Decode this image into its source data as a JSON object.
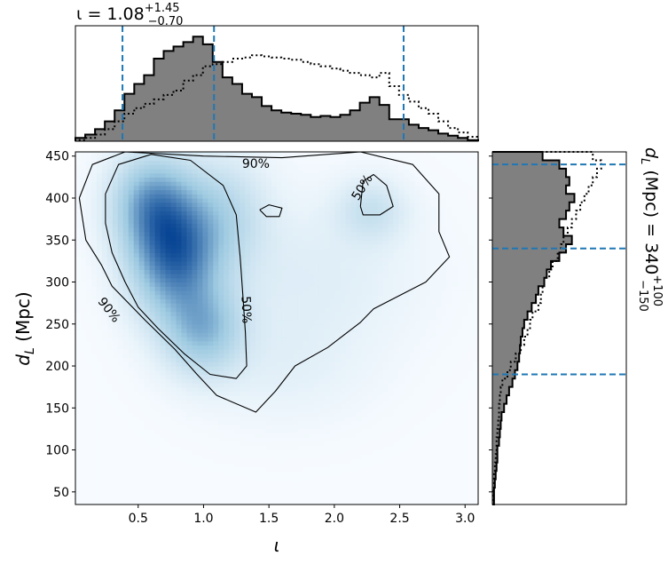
{
  "chart_data": [
    {
      "panel": "top-marginal",
      "type": "histogram",
      "title": "ι = 1.08",
      "title_sup": "+1.45",
      "title_sub": "−0.70",
      "xlim": [
        0.02,
        3.1
      ],
      "bin_edges": [
        0.02,
        0.095,
        0.17,
        0.245,
        0.32,
        0.395,
        0.47,
        0.545,
        0.62,
        0.695,
        0.77,
        0.845,
        0.92,
        0.995,
        1.07,
        1.145,
        1.22,
        1.295,
        1.37,
        1.445,
        1.52,
        1.595,
        1.67,
        1.745,
        1.82,
        1.895,
        1.97,
        2.045,
        2.12,
        2.195,
        2.27,
        2.345,
        2.42,
        2.495,
        2.57,
        2.645,
        2.72,
        2.795,
        2.87,
        2.945,
        3.02,
        3.1
      ],
      "filled_hist": [
        3,
        6,
        11,
        18,
        28,
        43,
        52,
        60,
        75,
        82,
        86,
        90,
        95,
        88,
        72,
        58,
        52,
        43,
        40,
        32,
        28,
        26,
        25,
        24,
        22,
        23,
        22,
        24,
        28,
        35,
        40,
        33,
        20,
        20,
        15,
        12,
        10,
        7,
        5,
        3,
        1
      ],
      "dotted_hist": [
        1,
        3,
        6,
        11,
        18,
        25,
        30,
        34,
        38,
        42,
        46,
        55,
        60,
        68,
        70,
        72,
        75,
        76,
        78,
        77,
        76,
        75,
        74,
        72,
        70,
        68,
        66,
        64,
        62,
        60,
        58,
        62,
        50,
        42,
        36,
        30,
        25,
        18,
        12,
        8,
        4
      ],
      "quantile_lines": [
        0.38,
        1.08,
        2.53
      ],
      "ylim": [
        0,
        100
      ]
    },
    {
      "panel": "joint",
      "type": "heatmap",
      "xlabel": "ι",
      "ylabel": "d",
      "ylabel_sub": "L",
      "ylabel_unit": " (Mpc)",
      "xlim": [
        0.02,
        3.1
      ],
      "ylim": [
        35,
        455
      ],
      "xticks": [
        0.5,
        1.0,
        1.5,
        2.0,
        2.5,
        3.0
      ],
      "xtick_labels": [
        "0.5",
        "1.0",
        "1.5",
        "2.0",
        "2.5",
        "3.0"
      ],
      "yticks": [
        50,
        100,
        150,
        200,
        250,
        300,
        350,
        400,
        450
      ],
      "ytick_labels": [
        "50",
        "100",
        "150",
        "200",
        "250",
        "300",
        "350",
        "400",
        "450"
      ],
      "density_blobs": [
        {
          "x": 0.78,
          "y": 335,
          "sx": 0.22,
          "sy": 48,
          "w": 1.0
        },
        {
          "x": 0.6,
          "y": 395,
          "sx": 0.2,
          "sy": 38,
          "w": 0.62
        },
        {
          "x": 1.0,
          "y": 245,
          "sx": 0.2,
          "sy": 35,
          "w": 0.55
        },
        {
          "x": 1.15,
          "y": 380,
          "sx": 0.22,
          "sy": 45,
          "w": 0.3
        },
        {
          "x": 2.28,
          "y": 385,
          "sx": 0.18,
          "sy": 25,
          "w": 0.22
        },
        {
          "x": 1.8,
          "y": 310,
          "sx": 0.55,
          "sy": 60,
          "w": 0.1
        },
        {
          "x": 1.6,
          "y": 200,
          "sx": 0.45,
          "sy": 45,
          "w": 0.07
        }
      ],
      "contours": [
        {
          "label": "90%",
          "points": [
            [
              0.05,
              400
            ],
            [
              0.15,
              440
            ],
            [
              0.4,
              455
            ],
            [
              1.0,
              450
            ],
            [
              1.6,
              448
            ],
            [
              2.2,
              455
            ],
            [
              2.6,
              440
            ],
            [
              2.8,
              405
            ],
            [
              2.8,
              360
            ],
            [
              2.88,
              330
            ],
            [
              2.7,
              300
            ],
            [
              2.3,
              268
            ],
            [
              2.2,
              252
            ],
            [
              1.95,
              222
            ],
            [
              1.7,
              200
            ],
            [
              1.55,
              170
            ],
            [
              1.4,
              145
            ],
            [
              1.1,
              165
            ],
            [
              0.95,
              190
            ],
            [
              0.78,
              220
            ],
            [
              0.55,
              255
            ],
            [
              0.3,
              295
            ],
            [
              0.22,
              320
            ],
            [
              0.1,
              350
            ],
            [
              0.05,
              400
            ]
          ]
        },
        {
          "label": "50%",
          "points": [
            [
              0.25,
              405
            ],
            [
              0.35,
              440
            ],
            [
              0.6,
              452
            ],
            [
              0.9,
              445
            ],
            [
              1.15,
              415
            ],
            [
              1.25,
              380
            ],
            [
              1.28,
              330
            ],
            [
              1.3,
              285
            ],
            [
              1.32,
              240
            ],
            [
              1.33,
              200
            ],
            [
              1.25,
              185
            ],
            [
              1.05,
              190
            ],
            [
              0.85,
              215
            ],
            [
              0.65,
              245
            ],
            [
              0.5,
              270
            ],
            [
              0.4,
              300
            ],
            [
              0.3,
              335
            ],
            [
              0.25,
              370
            ],
            [
              0.25,
              405
            ]
          ]
        },
        {
          "label": "50%",
          "points": [
            [
              2.2,
              390
            ],
            [
              2.22,
              420
            ],
            [
              2.3,
              428
            ],
            [
              2.4,
              415
            ],
            [
              2.45,
              390
            ],
            [
              2.35,
              380
            ],
            [
              2.22,
              380
            ],
            [
              2.2,
              390
            ]
          ]
        },
        {
          "label": "",
          "points": [
            [
              1.43,
              386
            ],
            [
              1.5,
              392
            ],
            [
              1.6,
              388
            ],
            [
              1.58,
              378
            ],
            [
              1.48,
              378
            ],
            [
              1.43,
              386
            ]
          ]
        }
      ],
      "contour_labels": [
        {
          "text": "90%",
          "x": 1.4,
          "y": 441
        },
        {
          "text": "90%",
          "x": 0.28,
          "y": 267
        },
        {
          "text": "50%",
          "x": 1.33,
          "y": 267
        },
        {
          "text": "50%",
          "x": 2.21,
          "y": 413
        }
      ]
    },
    {
      "panel": "right-marginal",
      "type": "histogram",
      "title": "d",
      "title_sub_L": "L",
      "title_unit": " (Mpc) = 340",
      "title_sup": "+100",
      "title_sub": "−150",
      "ylim": [
        35,
        455
      ],
      "bin_edges": [
        35,
        45,
        55,
        65,
        75,
        85,
        95,
        105,
        115,
        125,
        135,
        145,
        155,
        165,
        175,
        185,
        195,
        205,
        215,
        225,
        235,
        245,
        255,
        265,
        275,
        285,
        295,
        305,
        315,
        325,
        335,
        345,
        355,
        365,
        375,
        385,
        395,
        405,
        415,
        425,
        435,
        445,
        455
      ],
      "filled_hist": [
        2,
        2,
        3,
        4,
        5,
        6,
        6,
        8,
        9,
        10,
        11,
        14,
        17,
        20,
        24,
        27,
        30,
        32,
        33,
        34,
        36,
        38,
        42,
        47,
        52,
        55,
        62,
        65,
        70,
        80,
        88,
        95,
        85,
        80,
        88,
        92,
        98,
        88,
        92,
        88,
        80,
        60
      ],
      "dotted_hist": [
        1,
        1,
        2,
        2,
        3,
        4,
        5,
        5,
        6,
        7,
        8,
        8,
        9,
        10,
        12,
        18,
        22,
        28,
        34,
        38,
        42,
        45,
        48,
        55,
        58,
        60,
        62,
        68,
        72,
        78,
        82,
        85,
        90,
        95,
        100,
        105,
        110,
        115,
        120,
        125,
        130,
        120
      ],
      "quantile_lines": [
        190,
        340,
        440
      ],
      "xlim": [
        0,
        160
      ]
    }
  ]
}
